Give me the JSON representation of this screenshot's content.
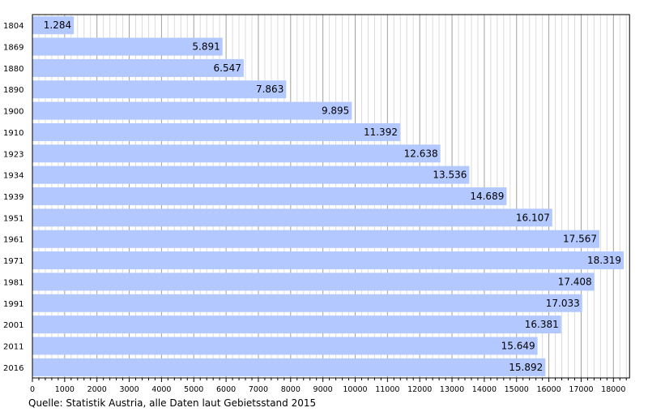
{
  "chart_data": {
    "type": "bar",
    "orientation": "horizontal",
    "categories": [
      "1804",
      "1869",
      "1880",
      "1890",
      "1900",
      "1910",
      "1923",
      "1934",
      "1939",
      "1951",
      "1961",
      "1971",
      "1981",
      "1991",
      "2001",
      "2011",
      "2016"
    ],
    "values": [
      1284,
      5891,
      6547,
      7863,
      9895,
      11392,
      12638,
      13536,
      14689,
      16107,
      17567,
      18319,
      17408,
      17033,
      16381,
      15649,
      15892
    ],
    "value_labels": [
      "1.284",
      "5.891",
      "6.547",
      "7.863",
      "9.895",
      "11.392",
      "12.638",
      "13.536",
      "14.689",
      "16.107",
      "17.567",
      "18.319",
      "17.408",
      "17.033",
      "16.381",
      "15.649",
      "15.892"
    ],
    "xlim": [
      0,
      18500
    ],
    "x_ticks": [
      0,
      1000,
      2000,
      3000,
      4000,
      5000,
      6000,
      7000,
      8000,
      9000,
      10000,
      11000,
      12000,
      13000,
      14000,
      15000,
      16000,
      17000,
      18000
    ],
    "grid": true,
    "bar_color": "#b3c8fe",
    "title": "",
    "xlabel": "",
    "ylabel": ""
  },
  "source": "Quelle: Statistik Austria, alle Daten laut Gebietsstand 2015"
}
